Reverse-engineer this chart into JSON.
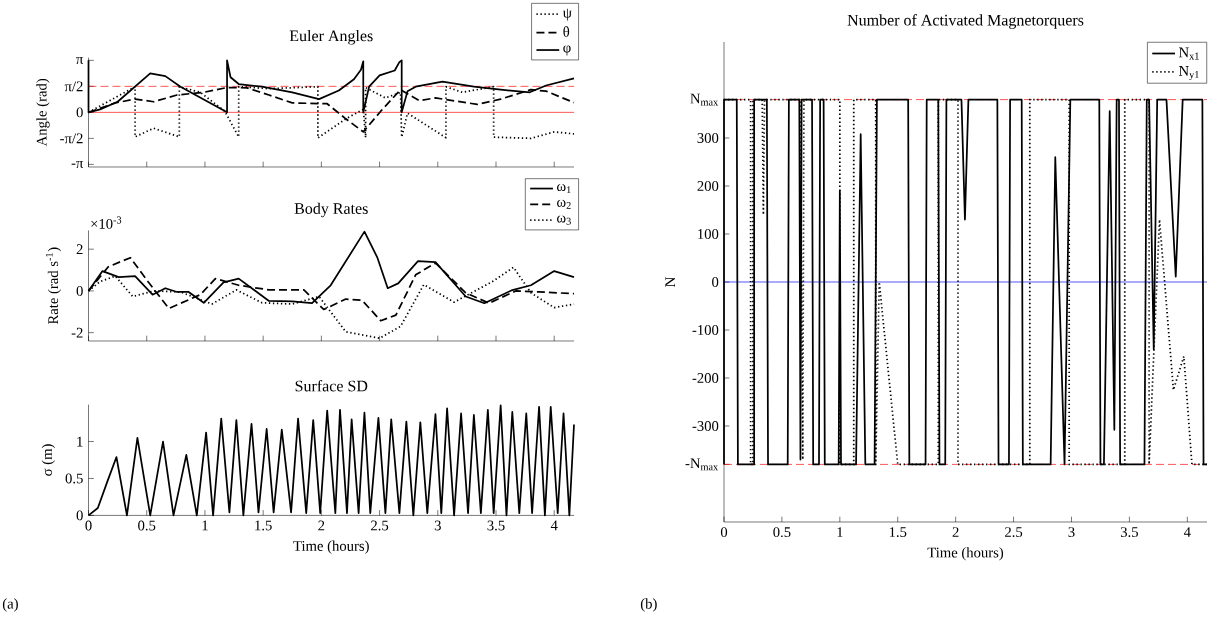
{
  "chart_data": [
    {
      "type": "line",
      "title": "Euler Angles",
      "ylabel": "Angle (rad)",
      "xlim": [
        0,
        4.17
      ],
      "ylim": [
        -3.3,
        3.3
      ],
      "xticks": [
        0,
        0.5,
        1,
        1.5,
        2,
        2.5,
        3,
        3.5,
        4
      ],
      "yticks": [
        {
          "value": -3.1416,
          "label": "-π"
        },
        {
          "value": -1.5708,
          "label": "-π/2"
        },
        0,
        {
          "value": 1.5708,
          "label": "π/2"
        },
        {
          "value": 3.1416,
          "label": "π"
        }
      ],
      "tick_labels": "y",
      "legend": "top right",
      "ref_lines": [
        {
          "axis": "y",
          "value": 0,
          "color": "#ff0000",
          "line_style": "solid"
        },
        {
          "axis": "y",
          "value": 1.5708,
          "color": "#ff0000",
          "line_style": "dashed"
        }
      ],
      "series": [
        {
          "name": "ψ",
          "color": "#000000",
          "line_style": "dotted",
          "x": [
            0,
            0.4,
            0.4,
            0.56,
            0.78,
            0.78,
            0.96,
            1.17,
            1.29,
            1.29,
            1.55,
            1.97,
            1.97,
            2.21,
            2.36,
            2.38,
            2.38,
            2.55,
            2.68,
            2.69,
            2.74,
            3.07,
            3.07,
            3.21,
            3.48,
            3.48,
            3.8,
            4.0,
            4.17
          ],
          "values": [
            0,
            1.55,
            -1.48,
            -0.96,
            -1.48,
            1.55,
            1.21,
            0.07,
            -1.48,
            1.55,
            1.43,
            1.55,
            -1.55,
            -0.39,
            0.18,
            -1.52,
            1.5,
            0.87,
            1.2,
            -1.5,
            -0.05,
            -1.53,
            1.55,
            1.21,
            1.55,
            -1.5,
            -1.57,
            -1.18,
            -1.3
          ]
        },
        {
          "name": "θ",
          "color": "#000000",
          "line_style": "dashed",
          "x": [
            0,
            0.23,
            0.4,
            0.56,
            0.76,
            0.99,
            1.19,
            1.36,
            1.55,
            1.75,
            2.05,
            2.21,
            2.36,
            2.51,
            2.68,
            2.84,
            2.98,
            3.34,
            3.54,
            3.8,
            3.93,
            4.17
          ],
          "values": [
            0,
            0.57,
            0.8,
            0.64,
            1.05,
            1.21,
            1.5,
            1.48,
            1.05,
            0.57,
            0.52,
            -0.39,
            -1.18,
            0.07,
            1.37,
            0.71,
            0.87,
            0.48,
            0.8,
            1.37,
            1.28,
            0.59
          ]
        },
        {
          "name": "φ",
          "color": "#000000",
          "line_style": "solid",
          "x": [
            0,
            0,
            0.1,
            0.25,
            0.53,
            0.66,
            0.79,
            1.19,
            1.19,
            1.22,
            1.29,
            1.49,
            1.75,
            1.98,
            2.15,
            2.28,
            2.34,
            2.36,
            2.36,
            2.41,
            2.5,
            2.63,
            2.67,
            2.69,
            2.69,
            2.74,
            2.81,
            3.04,
            3.31,
            3.54,
            3.79,
            3.93,
            4.17
          ],
          "values": [
            3.14,
            0,
            0.18,
            0.64,
            2.35,
            2.19,
            1.55,
            0,
            3.14,
            2.12,
            1.71,
            1.55,
            1.21,
            0.8,
            1.32,
            2.0,
            2.57,
            3.08,
            0,
            1.55,
            2.23,
            2.53,
            3.03,
            3.14,
            0,
            1.28,
            1.55,
            1.85,
            1.55,
            1.37,
            1.21,
            1.62,
            2.05
          ]
        }
      ]
    },
    {
      "type": "line",
      "title": "Body Rates",
      "ylabel": "Rate (rad s$^{-1}$)",
      "annotations": [
        "×10$^{-3}$"
      ],
      "xlim": [
        0,
        4.17
      ],
      "ylim": [
        -2.4,
        2.9
      ],
      "xticks": [
        0,
        0.5,
        1,
        1.5,
        2,
        2.5,
        3,
        3.5,
        4
      ],
      "yticks": [
        -2,
        0,
        2
      ],
      "tick_labels": "y",
      "legend": "top right",
      "series": [
        {
          "name": "ω$_{1}$",
          "color": "#000000",
          "line_style": "solid",
          "x": [
            0,
            0.12,
            0.26,
            0.4,
            0.55,
            0.66,
            0.76,
            0.86,
            0.99,
            1.16,
            1.29,
            1.55,
            1.75,
            1.92,
            2.08,
            2.37,
            2.48,
            2.57,
            2.66,
            2.83,
            2.98,
            3.24,
            3.4,
            3.64,
            3.8,
            4.0,
            4.17
          ],
          "values": [
            0,
            0.95,
            0.66,
            0.71,
            -0.18,
            0.13,
            -0.05,
            -0.05,
            -0.57,
            0.41,
            0.59,
            -0.48,
            -0.5,
            -0.59,
            0.27,
            2.84,
            1.61,
            0.13,
            0.36,
            1.43,
            1.38,
            -0.27,
            -0.59,
            0.04,
            0.27,
            0.95,
            0.66
          ]
        },
        {
          "name": "ω$_{2}$",
          "color": "#000000",
          "line_style": "dashed",
          "x": [
            0,
            0.17,
            0.36,
            0.51,
            0.69,
            0.96,
            1.09,
            1.29,
            1.55,
            1.85,
            2.02,
            2.21,
            2.35,
            2.51,
            2.64,
            2.81,
            2.98,
            3.24,
            3.44,
            3.67,
            3.87,
            4.17
          ],
          "values": [
            0,
            1.16,
            1.59,
            0.45,
            -0.84,
            -0.18,
            0.59,
            0.27,
            0.05,
            0.05,
            -0.89,
            -0.39,
            -0.45,
            -1.43,
            -1.16,
            0.77,
            1.34,
            -0.09,
            -0.59,
            0,
            -0.05,
            -0.13
          ]
        },
        {
          "name": "ω$_{3}$",
          "color": "#000000",
          "line_style": "dotted",
          "x": [
            0,
            0.1,
            0.23,
            0.38,
            0.56,
            0.79,
            1.06,
            1.27,
            1.49,
            1.75,
            1.98,
            2.21,
            2.5,
            2.68,
            2.88,
            3.14,
            3.47,
            3.65,
            3.8,
            4.0,
            4.17
          ],
          "values": [
            0,
            0.45,
            0.71,
            -0.27,
            0,
            -0.05,
            -0.63,
            0.05,
            -0.57,
            -0.63,
            -0.27,
            -1.96,
            -2.27,
            -1.7,
            0.3,
            -0.54,
            0.45,
            1.13,
            -0.09,
            -0.8,
            -0.63
          ]
        }
      ]
    },
    {
      "type": "line",
      "title": "Surface SD",
      "xlabel": "Time (hours)",
      "ylabel": "σ (m)",
      "annotations": [
        "(a)"
      ],
      "xlim": [
        0,
        4.17
      ],
      "ylim": [
        0,
        1.5
      ],
      "xticks": [
        0,
        0.5,
        1,
        1.5,
        2,
        2.5,
        3,
        3.5,
        4
      ],
      "yticks": [
        0,
        0.5,
        1
      ],
      "series": [
        {
          "color": "#000000",
          "line_style": "solid",
          "x": [
            0,
            0.08,
            0.16,
            0.24,
            0.33,
            0.42,
            0.53,
            0.64,
            0.73,
            0.84,
            0.93,
            1.01,
            1.07,
            1.14,
            1.21,
            1.27,
            1.33,
            1.4,
            1.46,
            1.53,
            1.59,
            1.66,
            1.74,
            1.8,
            1.87,
            1.93,
            1.99,
            2.05,
            2.12,
            2.16,
            2.22,
            2.26,
            2.32,
            2.37,
            2.42,
            2.49,
            2.55,
            2.6,
            2.67,
            2.73,
            2.79,
            2.85,
            2.91,
            2.98,
            3.03,
            3.08,
            3.14,
            3.2,
            3.26,
            3.31,
            3.37,
            3.43,
            3.48,
            3.54,
            3.59,
            3.64,
            3.7,
            3.76,
            3.81,
            3.87,
            3.92,
            3.97,
            4.03,
            4.08,
            4.13,
            4.17
          ],
          "values": [
            0,
            0.1,
            0.45,
            0.79,
            0,
            1.05,
            0,
            1.0,
            0,
            0.82,
            0,
            1.12,
            0,
            1.31,
            0.04,
            1.29,
            0,
            1.24,
            0.04,
            1.17,
            0.04,
            1.16,
            0.04,
            1.31,
            0.03,
            1.29,
            0.03,
            1.42,
            0.03,
            1.43,
            0.03,
            1.3,
            0.03,
            1.39,
            0.03,
            1.32,
            0.03,
            1.3,
            0.03,
            1.27,
            0,
            1.26,
            0.03,
            1.37,
            0.03,
            1.45,
            0,
            1.38,
            0.03,
            1.36,
            0.03,
            1.43,
            0.03,
            1.49,
            0,
            1.4,
            0.03,
            1.38,
            0.03,
            1.47,
            0,
            1.47,
            0.03,
            1.38,
            0,
            1.23
          ]
        }
      ]
    },
    {
      "type": "line",
      "title": "Number of Activated Magnetorquers",
      "xlabel": "Time (hours)",
      "ylabel": "N",
      "annotations": [
        "(b)"
      ],
      "xlim": [
        0,
        4.17
      ],
      "ylim": [
        -500,
        500
      ],
      "xticks": [
        0,
        0.5,
        1,
        1.5,
        2,
        2.5,
        3,
        3.5,
        4
      ],
      "yticks": [
        {
          "value": -380,
          "label": "-N$_{max}$"
        },
        -300,
        -200,
        -100,
        0,
        100,
        200,
        300,
        {
          "value": 380,
          "label": "N$_{max}$"
        }
      ],
      "legend": "top right",
      "ref_lines": [
        {
          "axis": "y",
          "value": 380,
          "color": "#ff0000",
          "line_style": "dashed"
        },
        {
          "axis": "y",
          "value": -380,
          "color": "#ff0000",
          "line_style": "dashed"
        },
        {
          "axis": "y",
          "value": 0,
          "color": "#0000ff",
          "line_style": "solid"
        }
      ],
      "series": [
        {
          "name": "N$_{x1}$",
          "color": "#000000",
          "line_style": "solid",
          "x": [
            0,
            0,
            0.11,
            0.12,
            0.26,
            0.26,
            0.37,
            0.38,
            0.55,
            0.56,
            0.65,
            0.66,
            0.67,
            0.69,
            0.76,
            0.77,
            0.82,
            0.83,
            0.86,
            0.87,
            0.99,
            1.0,
            1.01,
            1.14,
            1.18,
            1.22,
            1.3,
            1.32,
            1.59,
            1.6,
            1.74,
            1.75,
            1.85,
            1.86,
            1.91,
            1.92,
            2.05,
            2.08,
            2.11,
            2.36,
            2.37,
            2.46,
            2.47,
            2.57,
            2.58,
            2.82,
            2.86,
            2.94,
            2.99,
            3.24,
            3.25,
            3.28,
            3.33,
            3.37,
            3.39,
            3.41,
            3.42,
            3.63,
            3.65,
            3.67,
            3.71,
            3.74,
            3.82,
            3.9,
            3.96,
            4.13,
            4.14,
            4.17
          ],
          "values": [
            -380,
            380,
            380,
            -380,
            -380,
            380,
            380,
            -380,
            -380,
            380,
            380,
            -370,
            380,
            380,
            380,
            -380,
            -380,
            380,
            380,
            -380,
            -380,
            190,
            -380,
            -380,
            308,
            -380,
            -380,
            380,
            380,
            -380,
            -380,
            380,
            380,
            -380,
            -380,
            380,
            380,
            130,
            380,
            380,
            -380,
            -380,
            380,
            380,
            -380,
            -380,
            260,
            -380,
            380,
            380,
            -380,
            -380,
            356,
            -308,
            380,
            380,
            -380,
            -380,
            380,
            380,
            -140,
            380,
            380,
            11,
            380,
            380,
            -380,
            -380
          ]
        },
        {
          "name": "N$_{y1}$",
          "color": "#000000",
          "line_style": "dotted",
          "x": [
            0,
            0.23,
            0.23,
            0.25,
            0.25,
            0.33,
            0.34,
            0.35,
            0.66,
            0.68,
            0.69,
            1.0,
            1.0,
            1.12,
            1.12,
            1.31,
            1.31,
            1.34,
            1.5,
            1.85,
            1.85,
            2.02,
            2.02,
            2.64,
            2.64,
            2.98,
            2.98,
            3.46,
            3.46,
            3.67,
            3.67,
            3.76,
            3.88,
            3.97,
            4.04,
            4.17
          ],
          "values": [
            380,
            380,
            -380,
            -380,
            380,
            380,
            140,
            380,
            380,
            -370,
            380,
            380,
            -380,
            -380,
            380,
            380,
            -380,
            0,
            -380,
            -380,
            380,
            380,
            -380,
            -380,
            380,
            380,
            -380,
            -380,
            380,
            380,
            -380,
            130,
            -225,
            -155,
            -380,
            -380
          ]
        }
      ]
    }
  ]
}
